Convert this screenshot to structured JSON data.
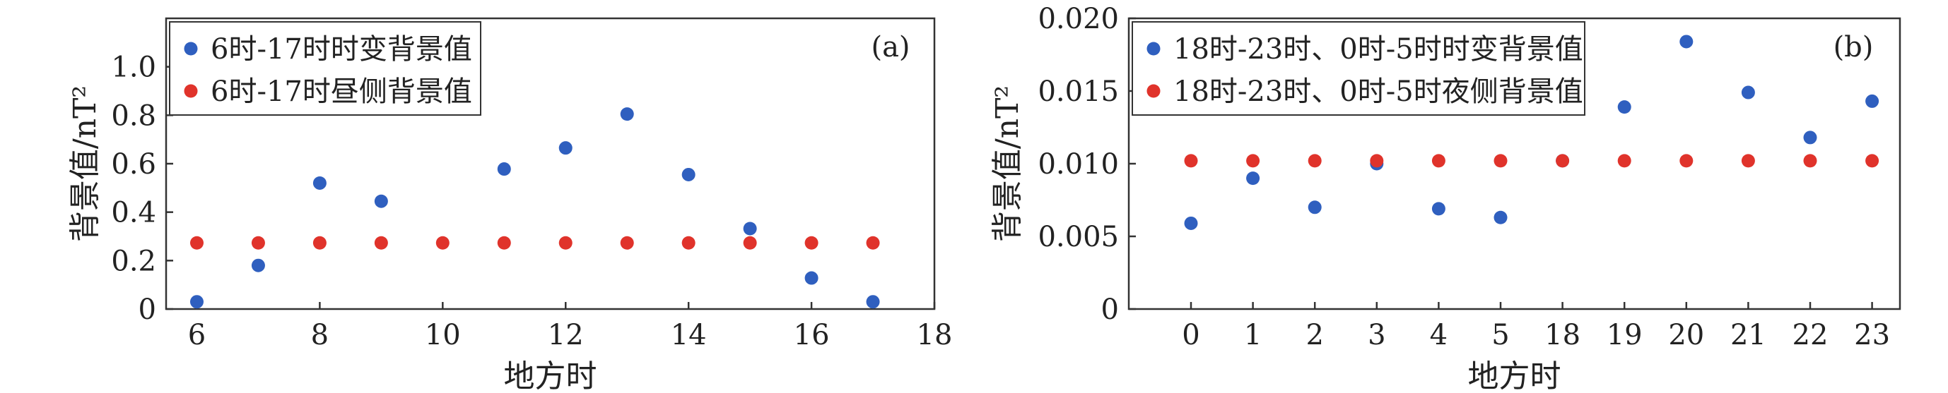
{
  "chart_data": [
    {
      "type": "scatter",
      "panel_label": "(a)",
      "xlabel": "地方时",
      "ylabel": "背景值/nT²",
      "xlim": [
        5.5,
        18
      ],
      "ylim": [
        0,
        1.2
      ],
      "xticks": [
        6,
        8,
        10,
        12,
        14,
        16,
        18
      ],
      "yticks": [
        0,
        0.2,
        0.4,
        0.6,
        0.8,
        1.0
      ],
      "ytick_labels": [
        "0",
        "0.2",
        "0.4",
        "0.6",
        "0.8",
        "1.0"
      ],
      "grid": false,
      "legend_position": "top-left",
      "series": [
        {
          "name": "6时-17时时变背景值",
          "color": "#2f5fbf",
          "x": [
            6,
            7,
            8,
            9,
            11,
            12,
            13,
            14,
            15,
            16,
            17
          ],
          "y": [
            0.03,
            0.18,
            0.52,
            0.445,
            0.578,
            0.665,
            0.805,
            0.555,
            0.332,
            0.128,
            0.03
          ]
        },
        {
          "name": "6时-17时昼侧背景值",
          "color": "#e0332b",
          "x": [
            6,
            7,
            8,
            9,
            10,
            11,
            12,
            13,
            14,
            15,
            16,
            17
          ],
          "y": [
            0.273,
            0.273,
            0.273,
            0.273,
            0.273,
            0.273,
            0.273,
            0.273,
            0.273,
            0.273,
            0.273,
            0.273
          ]
        }
      ]
    },
    {
      "type": "scatter",
      "panel_label": "(b)",
      "xlabel": "地方时",
      "ylabel": "背景值/nT²",
      "categories": [
        "0",
        "1",
        "2",
        "3",
        "4",
        "5",
        "18",
        "19",
        "20",
        "21",
        "22",
        "23"
      ],
      "ylim": [
        0,
        0.02
      ],
      "yticks": [
        0,
        0.005,
        0.01,
        0.015,
        0.02
      ],
      "ytick_labels": [
        "0",
        "0.005",
        "0.010",
        "0.015",
        "0.020"
      ],
      "grid": false,
      "legend_position": "top-left",
      "series": [
        {
          "name": "18时-23时、0时-5时时变背景值",
          "color": "#2f5fbf",
          "values": [
            0.0059,
            0.009,
            0.007,
            0.01,
            0.0069,
            0.0063,
            0.0102,
            0.0139,
            0.0184,
            0.0149,
            0.0118,
            0.0143
          ]
        },
        {
          "name": "18时-23时、0时-5时夜侧背景值",
          "color": "#e0332b",
          "values": [
            0.0102,
            0.0102,
            0.0102,
            0.0102,
            0.0102,
            0.0102,
            0.0102,
            0.0102,
            0.0102,
            0.0102,
            0.0102,
            0.0102
          ]
        }
      ]
    }
  ]
}
